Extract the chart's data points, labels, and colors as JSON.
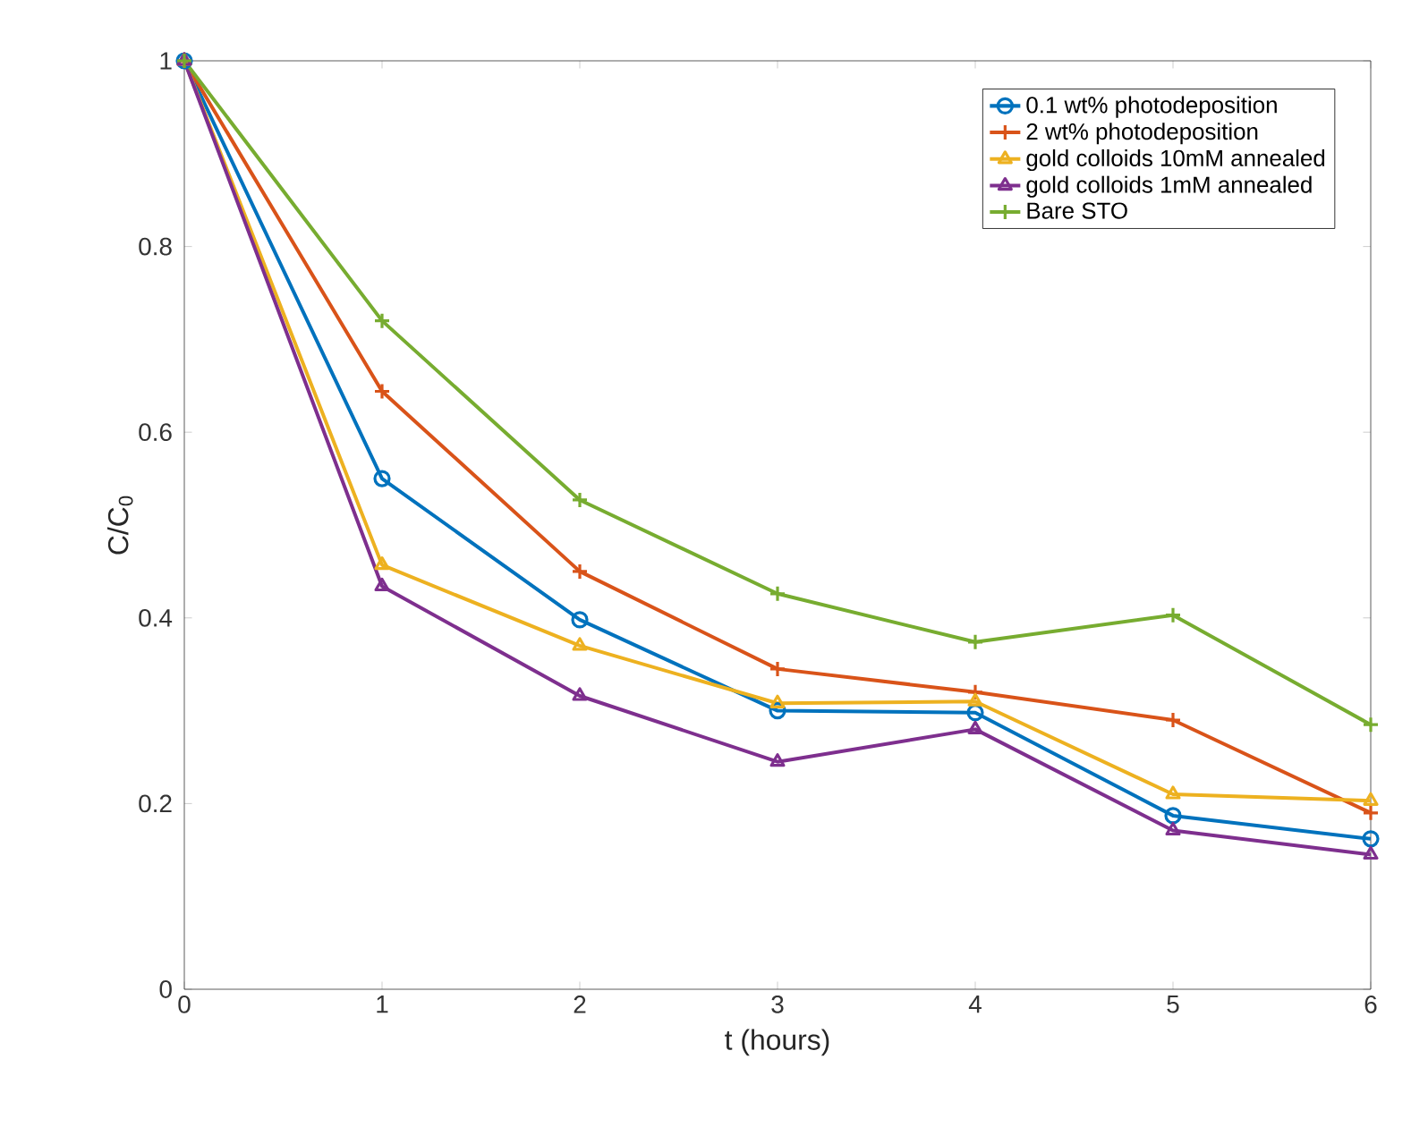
{
  "chart_data": {
    "type": "line",
    "xlabel": "t (hours)",
    "ylabel": "C/C$_{0}$",
    "x": [
      0,
      1,
      2,
      3,
      4,
      5,
      6
    ],
    "xlim": [
      0,
      6
    ],
    "xticks": [
      0,
      1,
      2,
      3,
      4,
      5,
      6
    ],
    "ylim": [
      0,
      1
    ],
    "yticks": [
      0,
      0.2,
      0.4,
      0.6,
      0.8,
      1
    ],
    "grid": false,
    "legend": "top right",
    "line_style": "solid",
    "series": [
      {
        "name": "0.1 wt% photodeposition",
        "color": "#0072bd",
        "marker": "circle",
        "values": [
          1,
          0.55,
          0.398,
          0.3,
          0.298,
          0.187,
          0.162
        ]
      },
      {
        "name": "2 wt% photodeposition",
        "color": "#d95319",
        "marker": "cross",
        "values": [
          1,
          0.644,
          0.45,
          0.345,
          0.32,
          0.29,
          0.19
        ]
      },
      {
        "name": "gold colloids 10mM annealed",
        "color": "#edb120",
        "marker": "triangle",
        "values": [
          1,
          0.457,
          0.37,
          0.308,
          0.31,
          0.21,
          0.203
        ]
      },
      {
        "name": "gold colloids 1mM annealed",
        "color": "#7e2f8e",
        "marker": "triangle",
        "values": [
          1,
          0.434,
          0.316,
          0.245,
          0.28,
          0.171,
          0.145
        ]
      },
      {
        "name": "Bare STO",
        "color": "#77ac30",
        "marker": "cross",
        "values": [
          1,
          0.72,
          0.527,
          0.426,
          0.374,
          0.403,
          0.285
        ]
      }
    ]
  }
}
